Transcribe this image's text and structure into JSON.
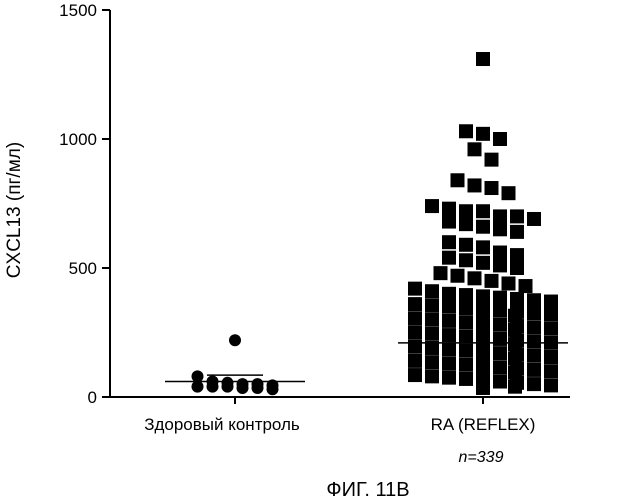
{
  "chart_data": {
    "type": "scatter",
    "ylabel": "CXCL13 (пг/мл)",
    "ylim": [
      0,
      1500
    ],
    "yticks": [
      "0",
      "500",
      "1000",
      "1500"
    ],
    "categories": [
      "Здоровый контроль",
      "RA (REFLEX)"
    ],
    "annotation": "n=339",
    "caption": "ФИГ. 11B",
    "series": [
      {
        "name": "Здоровый контроль",
        "marker": "circle",
        "median": 60,
        "sd_upper": 85,
        "values": [
          220,
          80,
          50,
          50,
          45,
          40,
          40,
          40,
          35,
          35,
          30,
          55,
          60
        ]
      },
      {
        "name": "RA (REFLEX)",
        "marker": "square",
        "median": 210,
        "values": [
          1310,
          1030,
          1020,
          1000,
          960,
          920,
          840,
          820,
          810,
          790,
          740,
          730,
          720,
          720,
          700,
          700,
          690,
          680,
          670,
          660,
          650,
          640,
          600,
          590,
          580,
          560,
          550,
          540,
          530,
          520,
          510,
          500,
          480,
          470,
          460,
          450,
          440,
          430,
          420,
          410,
          400,
          395,
          390,
          385,
          380,
          375,
          370,
          365,
          360,
          355,
          350,
          345,
          340,
          335,
          330,
          325,
          320,
          315,
          310,
          305,
          300,
          295,
          290,
          285,
          280,
          275,
          270,
          265,
          260,
          255,
          250,
          245,
          240,
          235,
          230,
          225,
          220,
          215,
          210,
          205,
          200,
          195,
          190,
          185,
          180,
          175,
          170,
          165,
          160,
          155,
          150,
          145,
          140,
          135,
          130,
          125,
          120,
          115,
          110,
          105,
          100,
          95,
          90,
          85,
          80,
          75,
          70,
          65,
          60,
          55,
          50,
          45,
          40,
          35
        ]
      }
    ]
  }
}
